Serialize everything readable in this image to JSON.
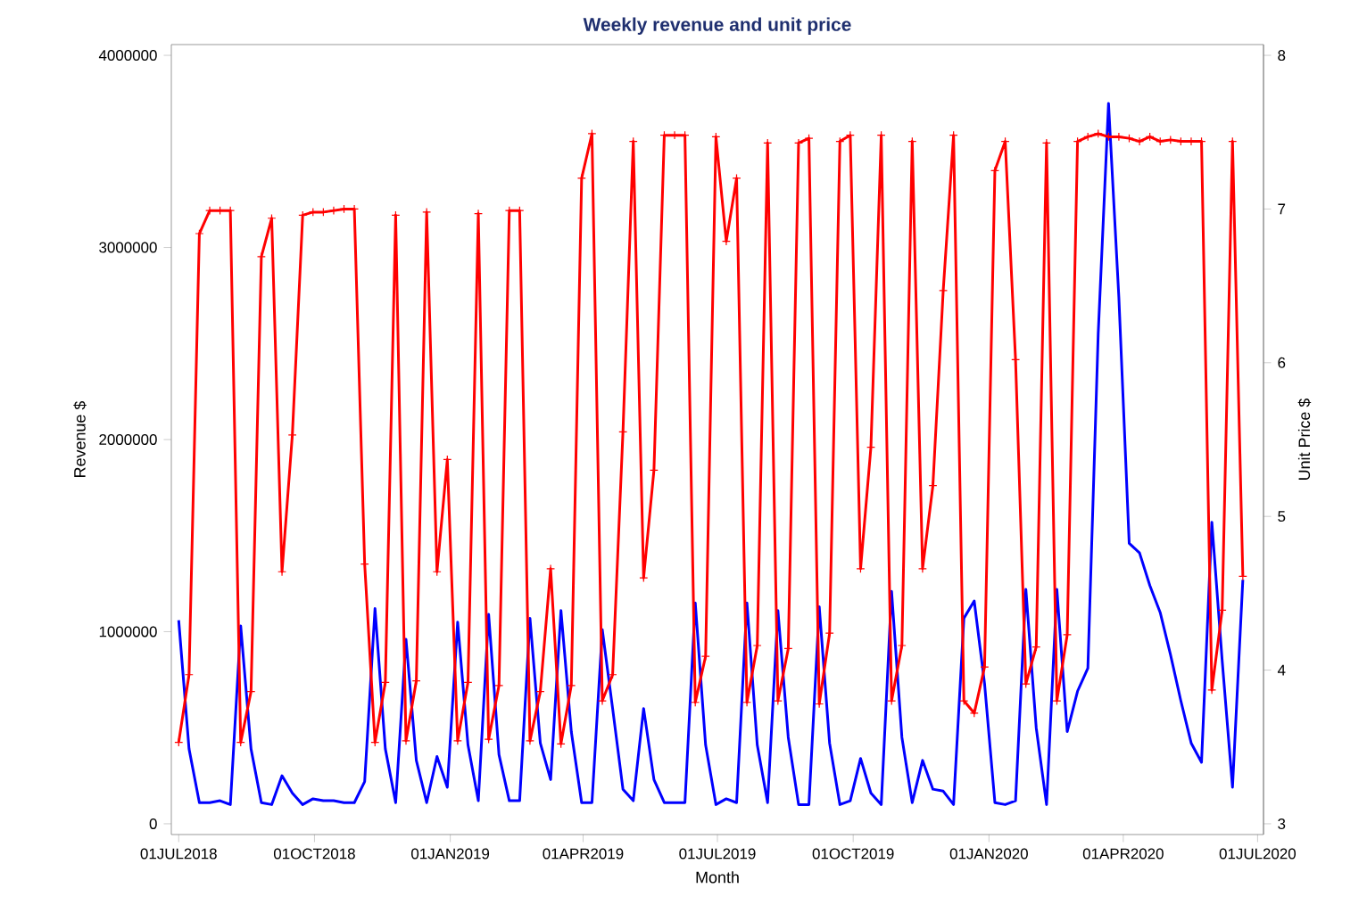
{
  "chart_data": {
    "type": "line",
    "title": "Weekly revenue and unit price",
    "xlabel": "Month",
    "ylabel": "Revenue $",
    "y2label": "Unit Price $",
    "x": [
      "2018-07-01",
      "2018-07-08",
      "2018-07-15",
      "2018-07-22",
      "2018-07-29",
      "2018-08-05",
      "2018-08-12",
      "2018-08-19",
      "2018-08-26",
      "2018-09-02",
      "2018-09-09",
      "2018-09-16",
      "2018-09-23",
      "2018-09-30",
      "2018-10-07",
      "2018-10-14",
      "2018-10-21",
      "2018-10-28",
      "2018-11-04",
      "2018-11-11",
      "2018-11-18",
      "2018-11-25",
      "2018-12-02",
      "2018-12-09",
      "2018-12-16",
      "2018-12-23",
      "2018-12-30",
      "2019-01-06",
      "2019-01-13",
      "2019-01-20",
      "2019-01-27",
      "2019-02-03",
      "2019-02-10",
      "2019-02-17",
      "2019-02-24",
      "2019-03-03",
      "2019-03-10",
      "2019-03-17",
      "2019-03-24",
      "2019-03-31",
      "2019-04-07",
      "2019-04-14",
      "2019-04-21",
      "2019-04-28",
      "2019-05-05",
      "2019-05-12",
      "2019-05-19",
      "2019-05-26",
      "2019-06-02",
      "2019-06-09",
      "2019-06-16",
      "2019-06-23",
      "2019-06-30",
      "2019-07-07",
      "2019-07-14",
      "2019-07-21",
      "2019-07-28",
      "2019-08-04",
      "2019-08-11",
      "2019-08-18",
      "2019-08-25",
      "2019-09-01",
      "2019-09-08",
      "2019-09-15",
      "2019-09-22",
      "2019-09-29",
      "2019-10-06",
      "2019-10-13",
      "2019-10-20",
      "2019-10-27",
      "2019-11-03",
      "2019-11-10",
      "2019-11-17",
      "2019-11-24",
      "2019-12-01",
      "2019-12-08",
      "2019-12-15",
      "2019-12-22",
      "2019-12-29",
      "2020-01-05",
      "2020-01-12",
      "2020-01-19",
      "2020-01-26",
      "2020-02-02",
      "2020-02-09",
      "2020-02-16",
      "2020-02-23",
      "2020-03-01",
      "2020-03-08",
      "2020-03-15",
      "2020-03-22",
      "2020-03-29",
      "2020-04-05",
      "2020-04-12",
      "2020-04-19",
      "2020-04-26",
      "2020-05-03",
      "2020-05-10",
      "2020-05-17",
      "2020-05-24",
      "2020-05-31",
      "2020-06-07",
      "2020-06-14",
      "2020-06-21"
    ],
    "series": [
      {
        "color": "#0000ff",
        "axis": "y",
        "marker": "none",
        "values": [
          1060000,
          390000,
          110000,
          110000,
          120000,
          100000,
          1030000,
          390000,
          110000,
          100000,
          250000,
          160000,
          100000,
          130000,
          120000,
          120000,
          110000,
          110000,
          220000,
          1120000,
          390000,
          110000,
          960000,
          330000,
          110000,
          350000,
          190000,
          1050000,
          410000,
          120000,
          1090000,
          360000,
          120000,
          120000,
          1070000,
          420000,
          230000,
          1110000,
          480000,
          110000,
          110000,
          1010000,
          600000,
          180000,
          120000,
          600000,
          230000,
          110000,
          110000,
          110000,
          1150000,
          410000,
          100000,
          130000,
          110000,
          1150000,
          410000,
          110000,
          1110000,
          450000,
          100000,
          100000,
          1130000,
          420000,
          100000,
          120000,
          340000,
          160000,
          100000,
          1210000,
          450000,
          110000,
          330000,
          180000,
          170000,
          100000,
          1070000,
          1160000,
          730000,
          110000,
          100000,
          120000,
          1220000,
          500000,
          100000,
          1220000,
          480000,
          690000,
          810000,
          2550000,
          3750000,
          2740000,
          1460000,
          1410000,
          1240000,
          1100000,
          880000,
          640000,
          420000,
          320000,
          1570000,
          850000,
          190000,
          1270000
        ]
      },
      {
        "color": "#ff0000",
        "axis": "y2",
        "marker": "cross",
        "values": [
          3.53,
          3.97,
          6.84,
          6.99,
          6.99,
          6.99,
          3.53,
          3.86,
          6.69,
          6.94,
          4.64,
          5.53,
          6.96,
          6.98,
          6.98,
          6.99,
          7.0,
          7.0,
          4.69,
          3.53,
          3.92,
          6.96,
          3.54,
          3.93,
          6.98,
          4.64,
          5.37,
          3.54,
          3.92,
          6.97,
          3.55,
          3.9,
          6.99,
          6.99,
          3.54,
          3.86,
          4.66,
          3.52,
          3.9,
          7.2,
          7.49,
          3.8,
          3.97,
          5.55,
          7.44,
          4.6,
          5.3,
          7.48,
          7.48,
          7.48,
          3.79,
          4.09,
          7.47,
          6.79,
          7.2,
          3.79,
          4.16,
          7.43,
          3.8,
          4.14,
          7.43,
          7.46,
          3.78,
          4.24,
          7.44,
          7.48,
          4.66,
          5.45,
          7.48,
          3.8,
          4.16,
          7.44,
          4.66,
          5.2,
          6.47,
          7.48,
          3.8,
          3.72,
          4.02,
          7.25,
          7.44,
          6.02,
          3.91,
          4.15,
          7.43,
          3.8,
          4.23,
          7.44,
          7.47,
          7.49,
          7.47,
          7.47,
          7.46,
          7.44,
          7.47,
          7.44,
          7.45,
          7.44,
          7.44,
          7.44,
          3.87,
          4.39,
          7.44,
          4.61
        ]
      }
    ],
    "xlim": [
      "2018-06-26",
      "2020-07-05"
    ],
    "xticks": [
      {
        "value": "2018-07-01",
        "label": "01JUL2018"
      },
      {
        "value": "2018-10-01",
        "label": "01OCT2018"
      },
      {
        "value": "2019-01-01",
        "label": "01JAN2019"
      },
      {
        "value": "2019-04-01",
        "label": "01APR2019"
      },
      {
        "value": "2019-07-01",
        "label": "01JUL2019"
      },
      {
        "value": "2019-10-01",
        "label": "01OCT2019"
      },
      {
        "value": "2020-01-01",
        "label": "01JAN2020"
      },
      {
        "value": "2020-04-01",
        "label": "01APR2020"
      },
      {
        "value": "2020-07-01",
        "label": "01JUL2020"
      }
    ],
    "ylim": [
      -56000,
      4056000
    ],
    "yticks": [
      0,
      1000000,
      2000000,
      3000000,
      4000000
    ],
    "y2lim": [
      2.93,
      8.07
    ],
    "y2ticks": [
      3,
      4,
      5,
      6,
      7,
      8
    ]
  }
}
